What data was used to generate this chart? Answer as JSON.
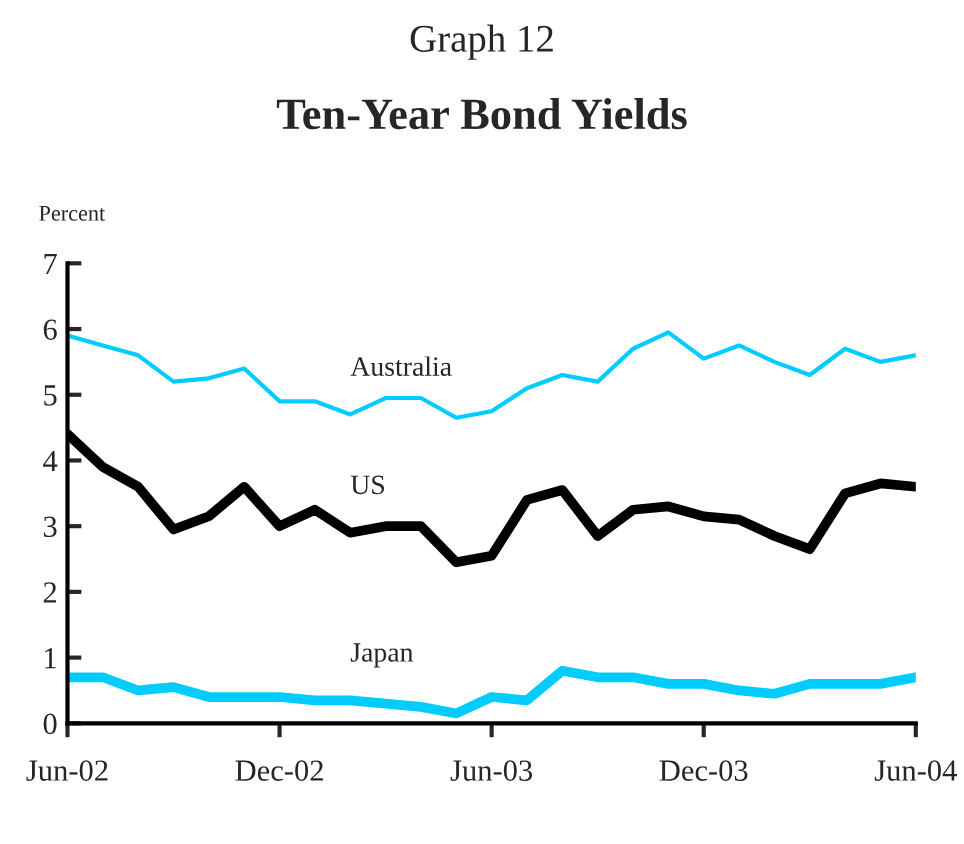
{
  "chart_data": {
    "type": "line",
    "title": "Graph 12",
    "subtitle": "Ten-Year Bond Yields",
    "ylabel": "Percent",
    "categories": [
      "Jun-02",
      null,
      null,
      null,
      null,
      null,
      "Dec-02",
      null,
      null,
      null,
      null,
      null,
      "Jun-03",
      null,
      null,
      null,
      null,
      null,
      "Dec-03",
      null,
      null,
      null,
      null,
      null,
      "Jun-04"
    ],
    "ylim": [
      0,
      7
    ],
    "yticks": [
      0,
      1,
      2,
      3,
      4,
      5,
      6,
      7
    ],
    "grid": false,
    "legend": false,
    "marker": "none",
    "line_style": "solid",
    "series": [
      {
        "name": "Australia",
        "color": "#00ccff",
        "values": [
          5.9,
          5.75,
          5.6,
          5.2,
          5.25,
          5.4,
          4.9,
          4.9,
          4.7,
          4.95,
          4.95,
          4.65,
          4.75,
          5.1,
          5.3,
          5.2,
          5.7,
          5.95,
          5.55,
          5.75,
          5.5,
          5.3,
          5.7,
          5.5,
          5.6
        ]
      },
      {
        "name": "US",
        "color": "#000000",
        "values": [
          4.4,
          3.9,
          3.6,
          2.95,
          3.15,
          3.6,
          3.0,
          3.25,
          2.9,
          3.0,
          3.0,
          2.45,
          2.55,
          3.4,
          3.55,
          2.85,
          3.25,
          3.3,
          3.15,
          3.1,
          2.85,
          2.65,
          3.5,
          3.65,
          3.6
        ]
      },
      {
        "name": "Japan",
        "color": "#00ccff",
        "values": [
          0.7,
          0.7,
          0.5,
          0.55,
          0.4,
          0.4,
          0.4,
          0.35,
          0.35,
          0.3,
          0.25,
          0.15,
          0.4,
          0.35,
          0.8,
          0.7,
          0.7,
          0.6,
          0.6,
          0.5,
          0.45,
          0.6,
          0.6,
          0.6,
          0.7
        ]
      }
    ]
  }
}
